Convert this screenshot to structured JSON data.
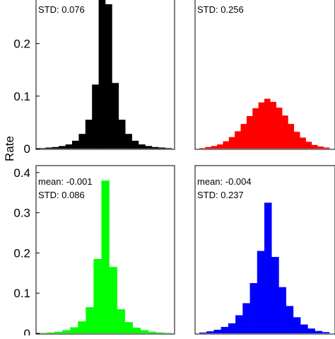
{
  "chart_data": {
    "ylabel": "Rate",
    "panels": [
      {
        "type": "bar",
        "color": "#000000",
        "ylim": [
          0,
          0.4
        ],
        "yticks": [
          "0",
          "0.1",
          "0.2"
        ],
        "stats": [
          "STD: 0.076"
        ],
        "values": [
          0.001,
          0.002,
          0.003,
          0.005,
          0.008,
          0.015,
          0.028,
          0.055,
          0.122,
          0.32,
          0.275,
          0.125,
          0.055,
          0.028,
          0.015,
          0.008,
          0.005,
          0.003,
          0.002,
          0.001
        ]
      },
      {
        "type": "bar",
        "color": "#ff0000",
        "ylim": [
          0,
          0.4
        ],
        "yticks": [],
        "stats": [
          "STD: 0.256"
        ],
        "values": [
          0.001,
          0.003,
          0.005,
          0.008,
          0.014,
          0.022,
          0.033,
          0.047,
          0.062,
          0.077,
          0.088,
          0.095,
          0.089,
          0.078,
          0.063,
          0.047,
          0.032,
          0.021,
          0.013,
          0.007,
          0.004,
          0.002
        ]
      },
      {
        "type": "bar",
        "color": "#00ff00",
        "ylim": [
          0,
          0.4
        ],
        "yticks": [
          "0",
          "0.1",
          "0.2",
          "0.3",
          "0.4"
        ],
        "stats": [
          "mean: -0.001",
          "STD: 0.086"
        ],
        "values": [
          0.001,
          0.002,
          0.004,
          0.008,
          0.015,
          0.03,
          0.065,
          0.185,
          0.38,
          0.165,
          0.06,
          0.028,
          0.014,
          0.008,
          0.004,
          0.002,
          0.001
        ]
      },
      {
        "type": "bar",
        "color": "#0000ff",
        "ylim": [
          0,
          0.4
        ],
        "yticks": [],
        "stats": [
          "mean: -0.004",
          "STD: 0.237"
        ],
        "values": [
          0.002,
          0.005,
          0.009,
          0.016,
          0.025,
          0.045,
          0.075,
          0.125,
          0.205,
          0.325,
          0.19,
          0.115,
          0.068,
          0.04,
          0.022,
          0.012,
          0.006,
          0.003
        ]
      }
    ]
  }
}
